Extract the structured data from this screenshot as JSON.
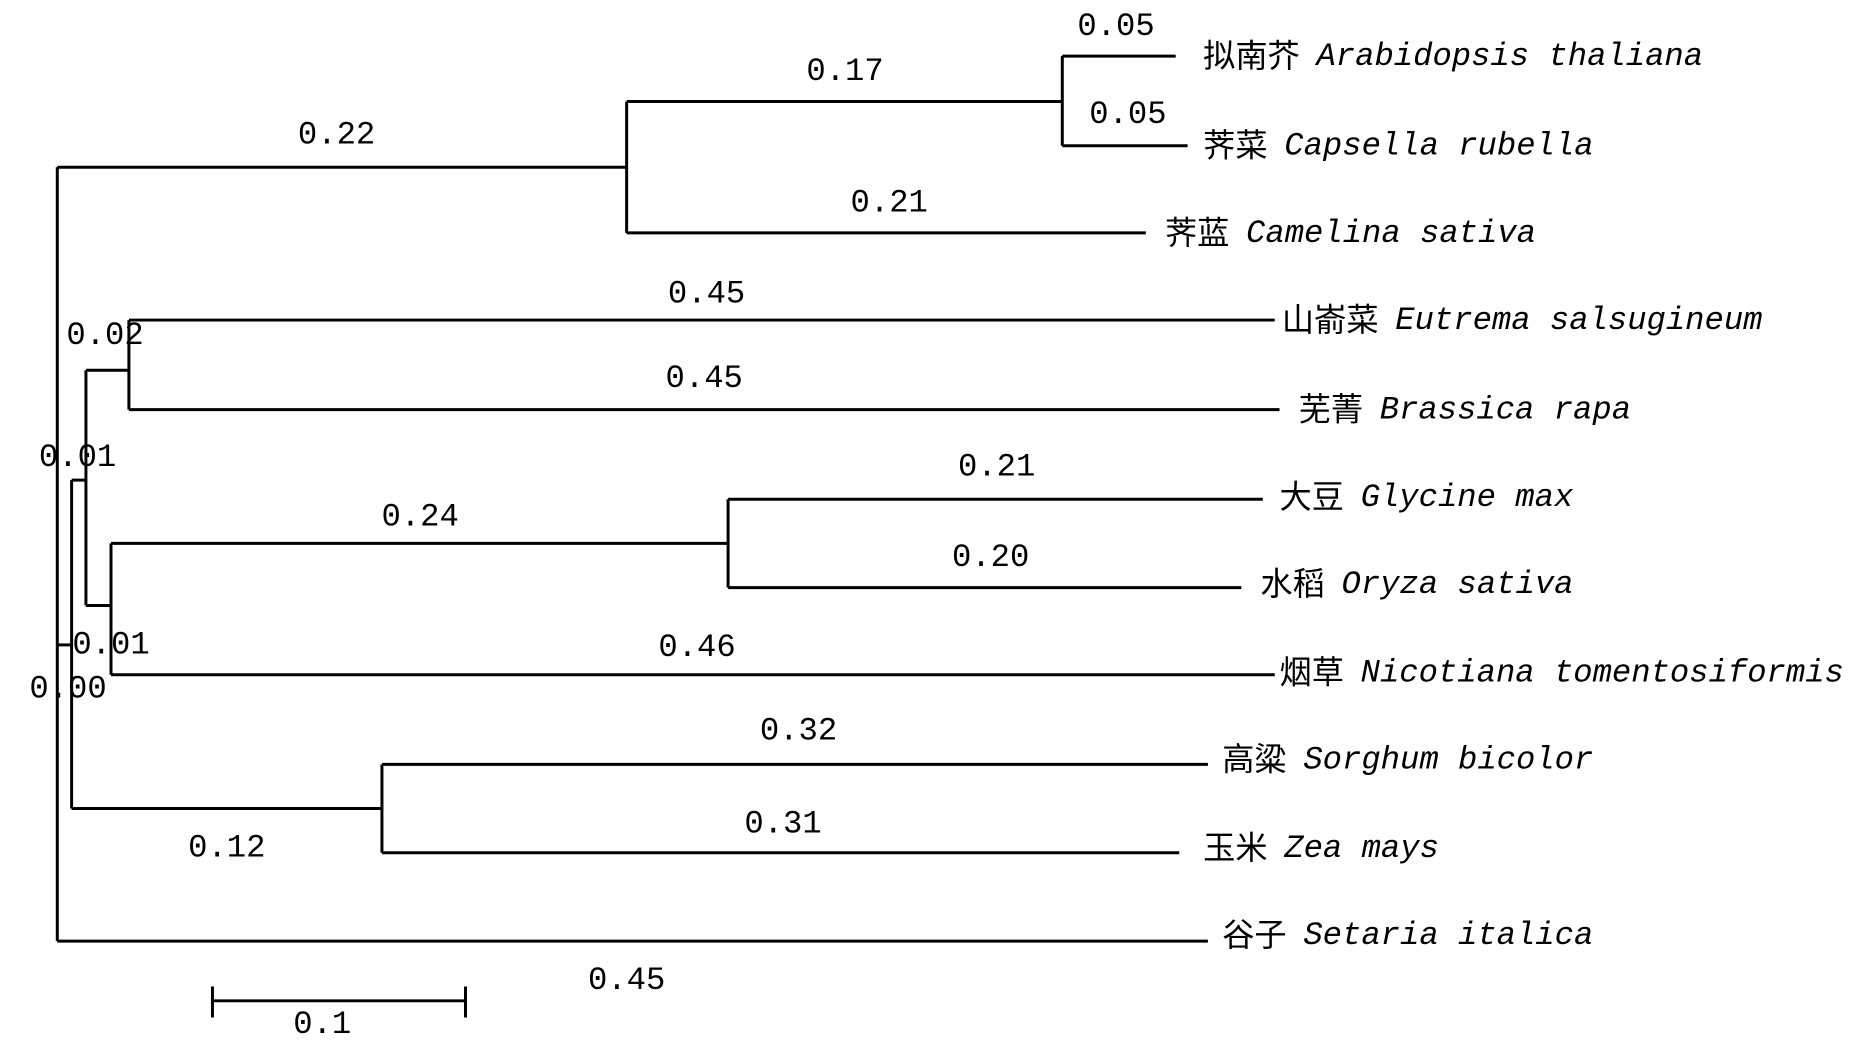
{
  "tree": {
    "taxa": [
      {
        "cn": "拟南芥",
        "latin": "Arabidopsis thaliana"
      },
      {
        "cn": "荠菜",
        "latin": "Capsella rubella"
      },
      {
        "cn": "荠蓝",
        "latin": "Camelina sativa"
      },
      {
        "cn": "山嵛菜",
        "latin": "Eutrema salsugineum"
      },
      {
        "cn": "芜菁",
        "latin": "Brassica rapa"
      },
      {
        "cn": "大豆",
        "latin": "Glycine max"
      },
      {
        "cn": "水稻",
        "latin": "Oryza sativa"
      },
      {
        "cn": "烟草",
        "latin": "Nicotiana tomentosiformis"
      },
      {
        "cn": "高粱",
        "latin": "Sorghum bicolor"
      },
      {
        "cn": "玉米",
        "latin": "Zea mays"
      },
      {
        "cn": "谷子",
        "latin": "Setaria italica"
      }
    ],
    "branch_lengths": [
      "0.05",
      "0.17",
      "0.05",
      "0.22",
      "0.21",
      "0.45",
      "0.02",
      "0.45",
      "0.01",
      "0.21",
      "0.24",
      "0.20",
      "0.01",
      "0.46",
      "0.00",
      "0.32",
      "0.31",
      "0.12",
      "0.45"
    ],
    "scale_bar": "0.1"
  }
}
